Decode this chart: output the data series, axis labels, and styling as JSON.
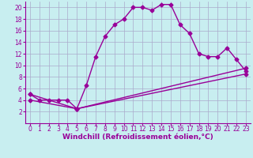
{
  "xlabel": "Windchill (Refroidissement éolien,°C)",
  "background_color": "#c8eef0",
  "line_color": "#990099",
  "grid_color": "#aaaacc",
  "xlim": [
    -0.5,
    23.5
  ],
  "ylim": [
    0,
    21
  ],
  "yticks": [
    2,
    4,
    6,
    8,
    10,
    12,
    14,
    16,
    18,
    20
  ],
  "xticks": [
    0,
    1,
    2,
    3,
    4,
    5,
    6,
    7,
    8,
    9,
    10,
    11,
    12,
    13,
    14,
    15,
    16,
    17,
    18,
    19,
    20,
    21,
    22,
    23
  ],
  "series1_x": [
    0,
    1,
    2,
    3,
    4,
    5,
    6,
    7,
    8,
    9,
    10,
    11,
    12,
    13,
    14,
    15,
    16,
    17,
    18,
    19,
    20,
    21,
    22,
    23
  ],
  "series1_y": [
    5,
    4,
    4,
    4,
    4,
    2.5,
    6.5,
    11.5,
    15,
    17,
    18,
    20,
    20,
    19.5,
    20.5,
    20.5,
    17,
    15.5,
    12,
    11.5,
    11.5,
    13,
    11,
    9
  ],
  "series2_x": [
    0,
    5,
    23
  ],
  "series2_y": [
    4,
    2.5,
    8.5
  ],
  "series3_x": [
    0,
    5,
    23
  ],
  "series3_y": [
    5,
    2.5,
    9.5
  ],
  "marker": "D",
  "markersize": 2.5,
  "linewidth": 1.0,
  "xlabel_fontsize": 6.5,
  "tick_fontsize": 5.5
}
